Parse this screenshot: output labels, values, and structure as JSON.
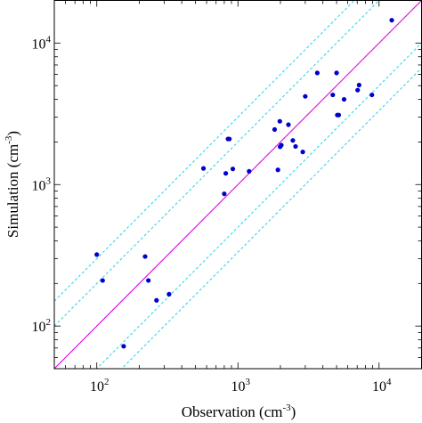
{
  "chart_data": {
    "type": "scatter",
    "xscale": "log",
    "yscale": "log",
    "xlim": [
      50,
      20000
    ],
    "ylim": [
      50,
      20000
    ],
    "xlabel": "Observation (cm",
    "ylabel": "Simulation (cm",
    "unit_exponent": "-3",
    "axis_label_close": ")",
    "xticks": [
      100,
      1000,
      10000
    ],
    "yticks": [
      100,
      1000,
      10000
    ],
    "tick_base": "10",
    "tick_exponents": [
      "2",
      "3",
      "4"
    ],
    "grid": false,
    "box": true,
    "reference_lines": {
      "one_to_one": {
        "factor": 1,
        "color": "#e600e6"
      },
      "factor_lines": {
        "factors": [
          0.333,
          0.5,
          2,
          3
        ],
        "color": "#33d6e6",
        "style": "dashed"
      }
    },
    "point_color": "#0000cc",
    "points": [
      [
        100,
        320
      ],
      [
        110,
        210
      ],
      [
        155,
        72
      ],
      [
        220,
        310
      ],
      [
        232,
        210
      ],
      [
        265,
        152
      ],
      [
        325,
        168
      ],
      [
        570,
        1300
      ],
      [
        800,
        860
      ],
      [
        820,
        1200
      ],
      [
        850,
        2100
      ],
      [
        870,
        2100
      ],
      [
        920,
        1290
      ],
      [
        1200,
        1240
      ],
      [
        1820,
        2450
      ],
      [
        1920,
        1270
      ],
      [
        1980,
        2800
      ],
      [
        1990,
        1850
      ],
      [
        2030,
        1900
      ],
      [
        2280,
        2650
      ],
      [
        2450,
        2050
      ],
      [
        2560,
        1860
      ],
      [
        2880,
        1700
      ],
      [
        3000,
        4200
      ],
      [
        3650,
        6150
      ],
      [
        4700,
        4300
      ],
      [
        5000,
        6150
      ],
      [
        5060,
        3100
      ],
      [
        5180,
        3100
      ],
      [
        5650,
        4000
      ],
      [
        7050,
        4650
      ],
      [
        7220,
        5050
      ],
      [
        8900,
        4300
      ],
      [
        12300,
        14500
      ]
    ]
  }
}
